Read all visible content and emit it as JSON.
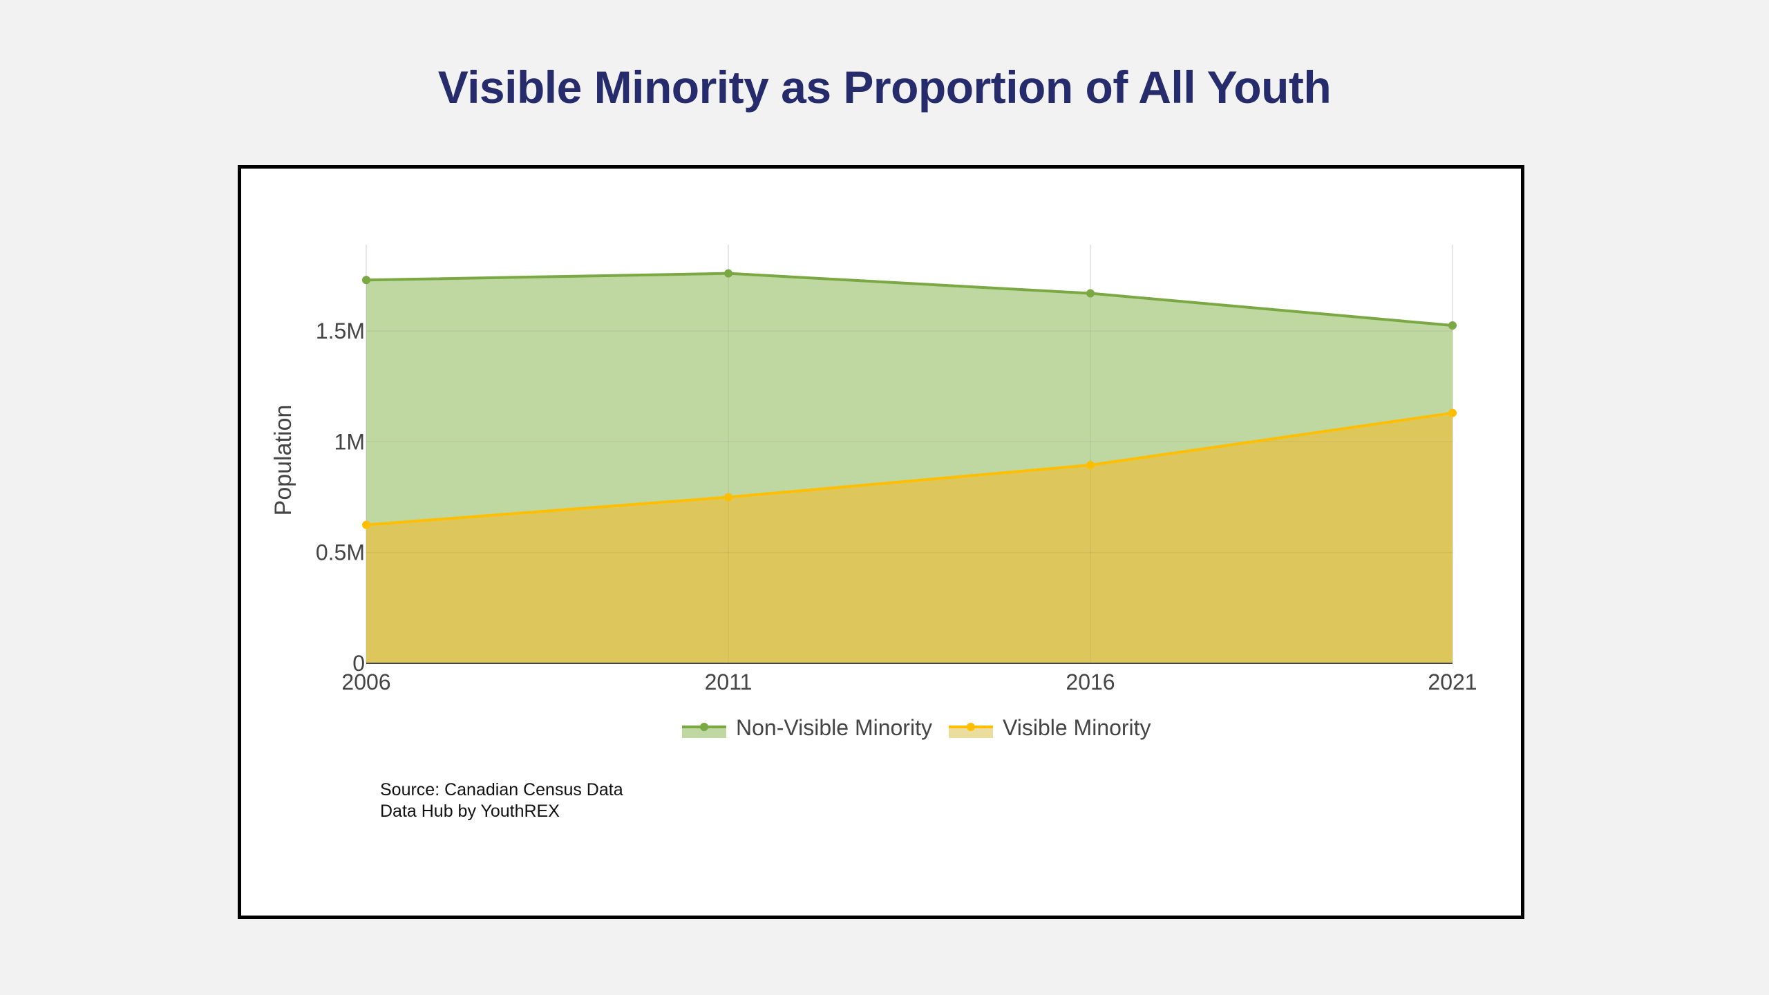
{
  "page": {
    "title": "Visible Minority as Proportion of All Youth"
  },
  "source": {
    "line1": "Source: Canadian Census Data",
    "line2": "Data Hub by YouthREX"
  },
  "chart_data": {
    "type": "area",
    "stacked": true,
    "title": "Visible Minority as Proportion of All Youth",
    "xlabel": "",
    "ylabel": "Population",
    "x": [
      2006,
      2011,
      2016,
      2021
    ],
    "x_tick_labels": [
      "2006",
      "2011",
      "2016",
      "2021"
    ],
    "y_ticks": [
      0,
      500000,
      1000000,
      1500000
    ],
    "y_tick_labels": [
      "0",
      "0.5M",
      "1M",
      "1.5M"
    ],
    "ylim": [
      0,
      1890000
    ],
    "grid": true,
    "legend_position": "bottom-center",
    "series": [
      {
        "name": "Visible Minority",
        "values": [
          625000,
          750000,
          895000,
          1130000
        ],
        "line_color": "#ffbf00",
        "fill_color": "#ddc75d"
      },
      {
        "name": "Non-Visible Minority",
        "values": [
          1105000,
          1010000,
          775000,
          395000
        ],
        "cumulative_top": [
          1730000,
          1760000,
          1670000,
          1525000
        ],
        "line_color": "#7aa843",
        "fill_color": "#bfd7a0"
      }
    ],
    "legend_order": [
      "Non-Visible Minority",
      "Visible Minority"
    ]
  }
}
